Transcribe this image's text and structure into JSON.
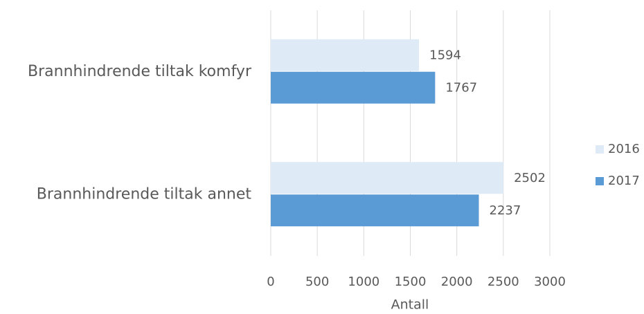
{
  "chart_data": {
    "type": "hbar",
    "categories": [
      "Brannhindrende tiltak komfyr",
      "Brannhindrende tiltak annet"
    ],
    "series": [
      {
        "name": "2016",
        "color": "#deebf7",
        "values": [
          1594,
          2502
        ]
      },
      {
        "name": "2017",
        "color": "#5b9bd5",
        "values": [
          1767,
          2237
        ]
      }
    ],
    "xlabel": "Antall",
    "xlim": [
      0,
      3000
    ],
    "xticks": [
      0,
      500,
      1000,
      1500,
      2000,
      2500,
      3000
    ],
    "grid": true,
    "legend": "right"
  }
}
